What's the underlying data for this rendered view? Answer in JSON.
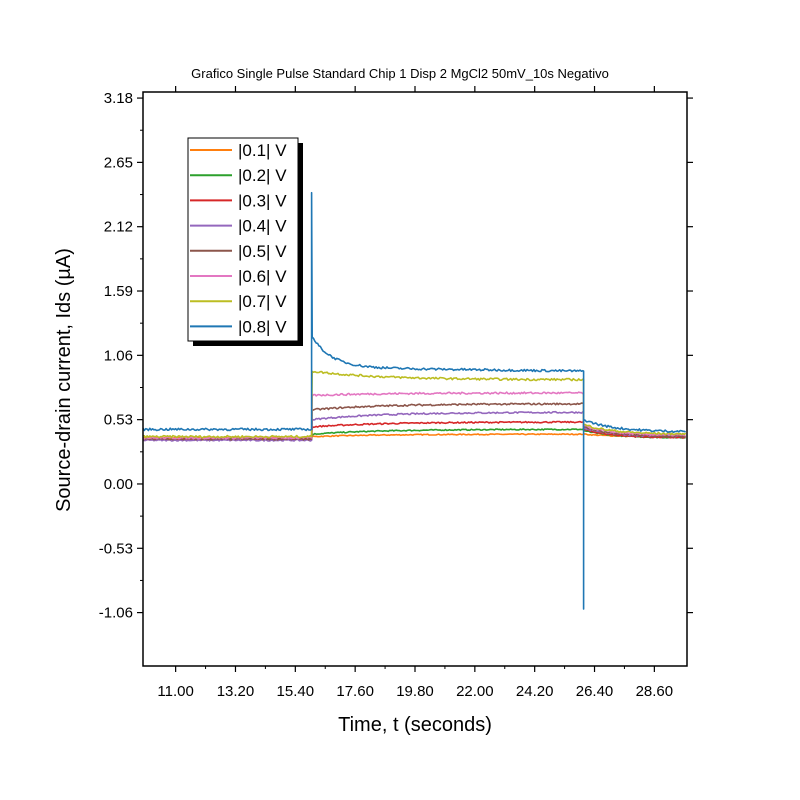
{
  "chart_data": {
    "type": "line",
    "title": "Grafico Single Pulse Standard Chip 1 Disp 2 MgCl2 50mV_10s Negativo",
    "xlabel": "Time, t (seconds)",
    "ylabel": "Source-drain current, Ids (µA)",
    "xlim": [
      9.8,
      29.8
    ],
    "ylim": [
      -1.5,
      3.23
    ],
    "x_ticks": [
      11.0,
      13.2,
      15.4,
      17.6,
      19.8,
      22.0,
      24.2,
      26.4,
      28.6
    ],
    "x_tick_labels": [
      "11.00",
      "13.20",
      "15.40",
      "17.60",
      "19.80",
      "22.00",
      "24.20",
      "26.40",
      "28.60"
    ],
    "y_ticks": [
      3.18,
      2.65,
      2.12,
      1.59,
      1.06,
      0.53,
      0.0,
      -0.53,
      -1.06
    ],
    "y_tick_labels": [
      "3.18",
      "2.65",
      "2.12",
      "1.59",
      "1.06",
      "0.53",
      "0.00",
      "-0.53",
      "-1.06"
    ],
    "grid": false,
    "legend_position": "top-left",
    "pulse": {
      "on": 16.0,
      "off": 26.0
    },
    "series": [
      {
        "name": "|0.1| V",
        "color": "#ff7f0e",
        "pre": 0.38,
        "on_start": 0.39,
        "on_end": 0.41,
        "post_start": 0.41,
        "post_end": 0.39
      },
      {
        "name": "|0.2| V",
        "color": "#2ca02c",
        "pre": 0.37,
        "on_start": 0.41,
        "on_end": 0.45,
        "post_start": 0.44,
        "post_end": 0.38
      },
      {
        "name": "|0.3| V",
        "color": "#d62728",
        "pre": 0.37,
        "on_start": 0.47,
        "on_end": 0.51,
        "post_start": 0.45,
        "post_end": 0.38
      },
      {
        "name": "|0.4| V",
        "color": "#9467bd",
        "pre": 0.36,
        "on_start": 0.53,
        "on_end": 0.59,
        "post_start": 0.46,
        "post_end": 0.39
      },
      {
        "name": "|0.5| V",
        "color": "#8c564b",
        "pre": 0.37,
        "on_start": 0.61,
        "on_end": 0.66,
        "post_start": 0.47,
        "post_end": 0.39
      },
      {
        "name": "|0.6| V",
        "color": "#e377c2",
        "pre": 0.38,
        "on_start": 0.73,
        "on_end": 0.75,
        "post_start": 0.48,
        "post_end": 0.4
      },
      {
        "name": "|0.7| V",
        "color": "#bcbd22",
        "pre": 0.39,
        "on_start": 0.93,
        "on_end": 0.86,
        "post_start": 0.49,
        "post_end": 0.41
      },
      {
        "name": "|0.8| V",
        "color": "#1f77b4",
        "pre": 0.45,
        "spike_up": 2.4,
        "spike_down": -1.03,
        "on_start": 1.22,
        "on_end": 0.93,
        "post_start": 0.53,
        "post_end": 0.43
      }
    ]
  }
}
